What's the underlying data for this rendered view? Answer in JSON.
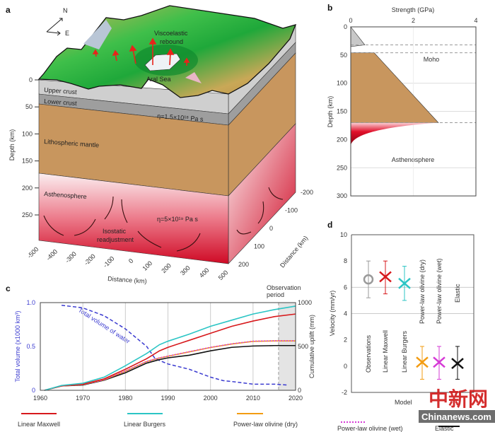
{
  "panel_a": {
    "label": "a",
    "compass": {
      "north": "N",
      "east": "E"
    },
    "annotations": {
      "rebound_line1": "Viscoelastic",
      "rebound_line2": "rebound",
      "aral_sea": "Aral Sea",
      "upper_crust": "Upper crust",
      "lower_crust": "Lower crust",
      "crust_viscosity": "η=1.5×10¹⁸ Pa s",
      "lithospheric_mantle": "Lithospheric mantle",
      "asthenosphere": "Asthenosphere",
      "asthenosphere_viscosity": "η=5×10¹⁹ Pa s",
      "readjust_line1": "Isostatic",
      "readjust_line2": "readjustment"
    },
    "depth_axis": {
      "label": "Depth (km)",
      "ticks": [
        "0",
        "50",
        "100",
        "150",
        "200",
        "250"
      ]
    },
    "x_distance_axis": {
      "label": "Distance (km)",
      "ticks": [
        "-500",
        "-400",
        "-300",
        "-200",
        "-100",
        "0",
        "100",
        "200",
        "300",
        "400",
        "500"
      ]
    },
    "y_distance_axis": {
      "label": "Distance (km)",
      "ticks": [
        "-200",
        "-100",
        "0",
        "100",
        "200"
      ]
    },
    "colors": {
      "upper_crust": "#cfcfcf",
      "lower_crust": "#9e9e9e",
      "mantle": "#c8965e",
      "asthenosphere": "#d0102a"
    }
  },
  "chart_data": [
    {
      "panel": "b",
      "type": "area",
      "xlabel": "Strength (GPa)",
      "ylabel": "Depth (km)",
      "xlim": [
        0,
        4
      ],
      "ylim": [
        300,
        0
      ],
      "x_ticks": [
        "0",
        "2",
        "4"
      ],
      "y_ticks": [
        "0",
        "50",
        "100",
        "150",
        "200",
        "250",
        "300"
      ],
      "grid": true,
      "annotations": [
        "Moho",
        "Asthenosphere"
      ],
      "boundaries_depth_km": [
        32,
        46,
        170
      ],
      "crust_profile": [
        [
          0,
          0
        ],
        [
          0.45,
          32
        ],
        [
          0,
          35
        ]
      ],
      "mantle_profile": [
        [
          0,
          46
        ],
        [
          0.75,
          46
        ],
        [
          2.8,
          170
        ],
        [
          0,
          170
        ]
      ],
      "asthenosphere_profile": [
        [
          2.8,
          170
        ],
        [
          0.3,
          180
        ],
        [
          0.05,
          200
        ],
        [
          0,
          210
        ]
      ],
      "colors": {
        "crust": "#c8c8c8",
        "mantle": "#c8965e",
        "asthenosphere": "#e0102a"
      }
    },
    {
      "panel": "c",
      "type": "line",
      "xlabel": "",
      "ylabel_left": "Total volume (x1000 km³)",
      "ylabel_right": "Cumulative uplift (mm)",
      "xlim": [
        1960,
        2020
      ],
      "ylim_left": [
        0,
        1.0
      ],
      "ylim_right": [
        0,
        1000
      ],
      "x_ticks": [
        "1960",
        "1970",
        "1980",
        "1990",
        "2000",
        "2010",
        "2020"
      ],
      "y_ticks_left": [
        "0",
        "0.5",
        "1.0"
      ],
      "y_ticks_right": [
        "0",
        "500",
        "1000"
      ],
      "grid": true,
      "shaded_region": {
        "label_line1": "Observation",
        "label_line2": "period",
        "x": [
          2016,
          2020
        ]
      },
      "water": {
        "label": "Total volume of water",
        "color": "#3b3bd0",
        "x": [
          1965,
          1970,
          1975,
          1980,
          1982,
          1985,
          1987,
          1990,
          1995,
          2000,
          2003,
          2005,
          2010,
          2015,
          2018
        ],
        "values": [
          0.97,
          0.94,
          0.85,
          0.7,
          0.62,
          0.5,
          0.36,
          0.3,
          0.24,
          0.15,
          0.11,
          0.1,
          0.07,
          0.07,
          0.06
        ]
      },
      "x": [
        1961,
        1965,
        1970,
        1975,
        1980,
        1985,
        1988,
        1990,
        1995,
        2000,
        2005,
        2010,
        2015,
        2020
      ],
      "series": [
        {
          "name": "Linear Maxwell",
          "color": "#d7191c",
          "style": "solid",
          "values": [
            0,
            50,
            70,
            130,
            240,
            360,
            450,
            490,
            570,
            650,
            730,
            790,
            840,
            870
          ]
        },
        {
          "name": "Linear Burgers",
          "color": "#2cc5c5",
          "style": "solid",
          "values": [
            0,
            55,
            80,
            150,
            280,
            420,
            520,
            560,
            640,
            730,
            800,
            870,
            920,
            960
          ]
        },
        {
          "name": "Power-law olivine (dry)",
          "color": "#f39c12",
          "style": "solid",
          "values": [
            0,
            50,
            65,
            120,
            218,
            328,
            368,
            388,
            438,
            488,
            528,
            558,
            563,
            563
          ]
        },
        {
          "name": "Power-law olivine (wet)",
          "color": "#d63bd6",
          "style": "dotted",
          "values": [
            0,
            50,
            65,
            120,
            220,
            330,
            370,
            390,
            440,
            490,
            530,
            560,
            565,
            565
          ]
        },
        {
          "name": "Elastic",
          "color": "#111111",
          "style": "solid",
          "values": [
            0,
            50,
            60,
            115,
            200,
            310,
            350,
            370,
            400,
            450,
            490,
            505,
            510,
            510
          ]
        }
      ]
    },
    {
      "panel": "d",
      "type": "scatter",
      "xlabel": "Model",
      "ylabel": "Velocity (mm/yr)",
      "ylim": [
        -2,
        10
      ],
      "y_ticks": [
        "-2",
        "0",
        "2",
        "4",
        "6",
        "8",
        "10"
      ],
      "grid": true,
      "categories": [
        "Observations",
        "Linear Maxwell",
        "Linear Burgers",
        "Power-law olivine (dry)",
        "Power-law olivine (wet)",
        "Elastic"
      ],
      "values": [
        6.6,
        6.8,
        6.3,
        0.3,
        0.3,
        0.2
      ],
      "error_low": [
        5.2,
        5.5,
        5.0,
        -1.0,
        -1.0,
        -1.0
      ],
      "error_high": [
        8.0,
        8.0,
        7.6,
        1.5,
        1.5,
        1.5
      ],
      "markers": [
        "circle",
        "x",
        "x",
        "x",
        "x",
        "x"
      ],
      "colors": [
        "#9a9a9a",
        "#d7191c",
        "#2cc5c5",
        "#f39c12",
        "#d63bd6",
        "#111111"
      ]
    }
  ],
  "panel_labels": {
    "b": "b",
    "c": "c",
    "d": "d"
  },
  "watermark": {
    "chinese": "中新网",
    "site": "Chinanews.com"
  }
}
